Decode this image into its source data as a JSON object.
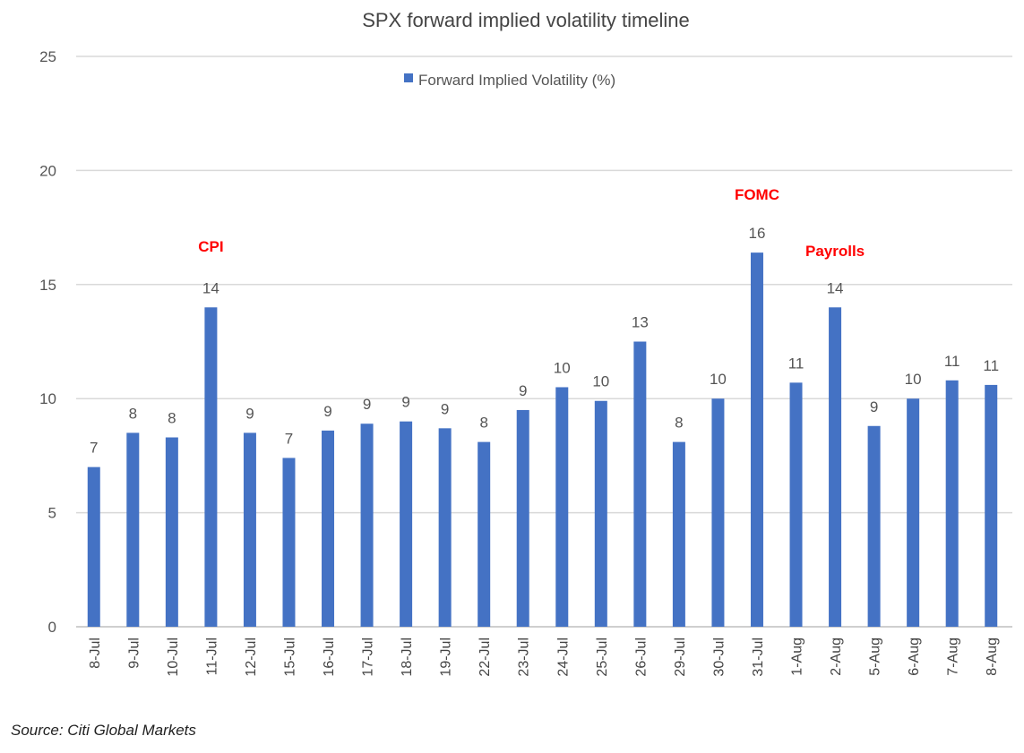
{
  "chart_data": {
    "type": "bar",
    "title": "SPX forward implied volatility timeline",
    "xlabel": "",
    "ylabel": "",
    "ylim": [
      0,
      25
    ],
    "yticks": [
      0,
      5,
      10,
      15,
      20,
      25
    ],
    "grid": true,
    "legend_placement": "top-center",
    "categories": [
      "8-Jul",
      "9-Jul",
      "10-Jul",
      "11-Jul",
      "12-Jul",
      "15-Jul",
      "16-Jul",
      "17-Jul",
      "18-Jul",
      "19-Jul",
      "22-Jul",
      "23-Jul",
      "24-Jul",
      "25-Jul",
      "26-Jul",
      "29-Jul",
      "30-Jul",
      "31-Jul",
      "1-Aug",
      "2-Aug",
      "5-Aug",
      "6-Aug",
      "7-Aug",
      "8-Aug"
    ],
    "series": [
      {
        "name": "Forward Implied Volatility (%)",
        "color": "#4472c4",
        "values": [
          7.0,
          8.5,
          8.3,
          14.0,
          8.5,
          7.4,
          8.6,
          8.9,
          9.0,
          8.7,
          8.1,
          9.5,
          10.5,
          9.9,
          12.5,
          8.1,
          10.0,
          16.4,
          10.7,
          14.0,
          8.8,
          10.0,
          10.8,
          10.6
        ],
        "data_labels": [
          "7",
          "8",
          "8",
          "14",
          "9",
          "7",
          "9",
          "9",
          "9",
          "9",
          "8",
          "9",
          "10",
          "10",
          "13",
          "8",
          "10",
          "16",
          "11",
          "14",
          "9",
          "10",
          "11",
          "11"
        ]
      }
    ],
    "annotations": [
      {
        "text": "CPI",
        "category": "11-Jul",
        "color": "#ff0000"
      },
      {
        "text": "FOMC",
        "category": "31-Jul",
        "color": "#ff0000"
      },
      {
        "text": "Payrolls",
        "category": "2-Aug",
        "color": "#ff0000"
      }
    ]
  },
  "source": "Source: Citi Global Markets"
}
